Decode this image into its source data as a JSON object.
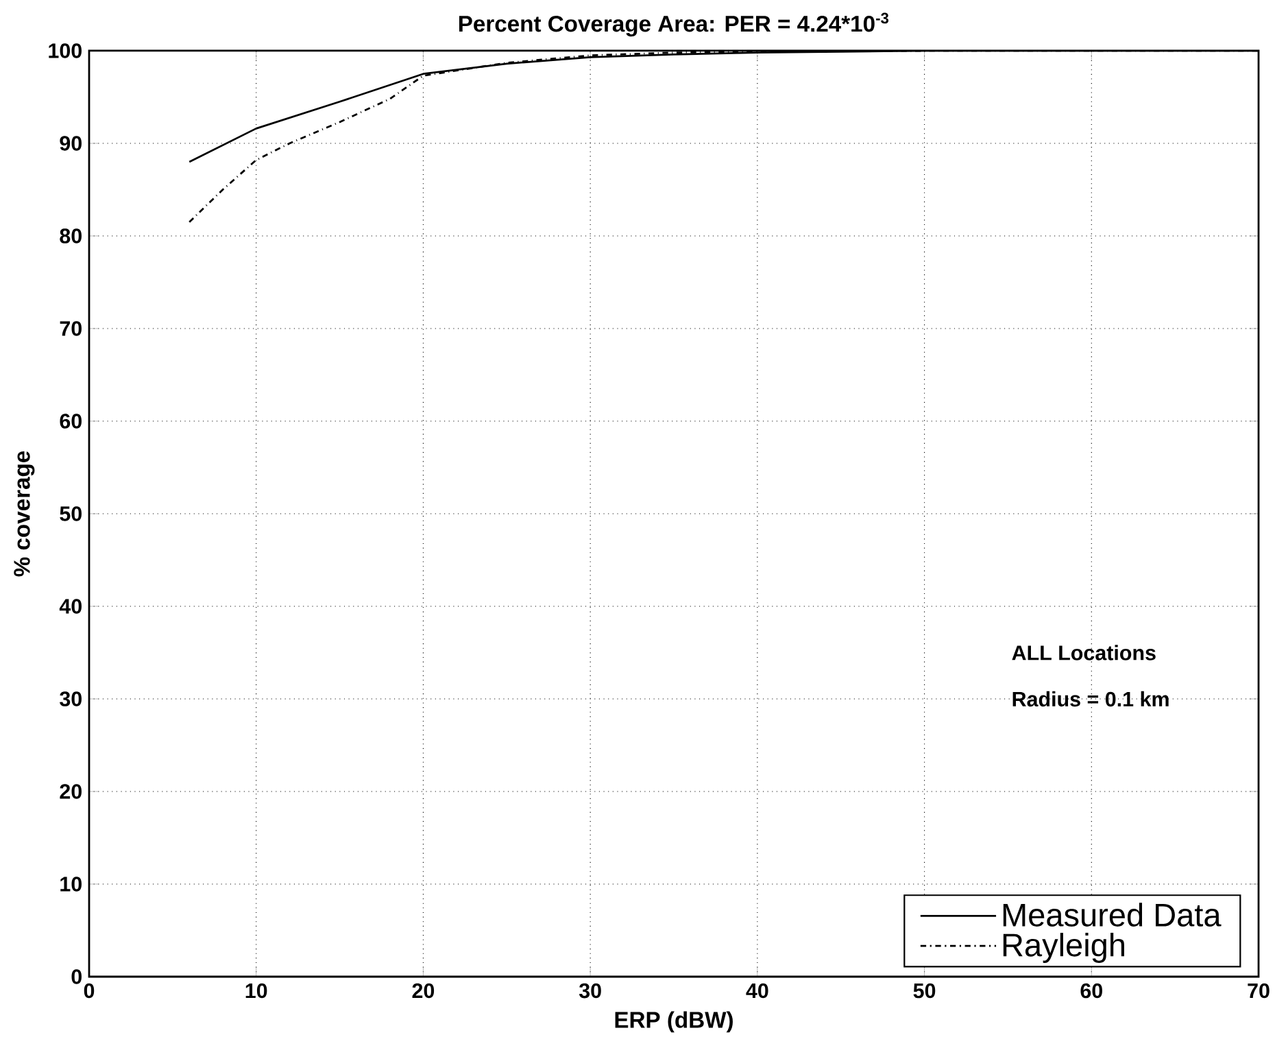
{
  "chart_data": {
    "type": "line",
    "title": "Percent Coverage Area: PER = 4.24*10$^{-3}$",
    "xlabel": "ERP (dBW)",
    "ylabel": "% coverage",
    "annotations": [
      "ALL Locations",
      "Radius = 0.1 km"
    ],
    "series": [
      {
        "name": "Measured Data",
        "color": "#000000",
        "line_style": "solid",
        "x": [
          6,
          10,
          15,
          20,
          25,
          30,
          35,
          40,
          45,
          50,
          70
        ],
        "values": [
          88,
          91.6,
          94.5,
          97.5,
          98.6,
          99.3,
          99.6,
          99.8,
          99.9,
          100,
          100
        ]
      },
      {
        "name": "Rayleigh",
        "color": "#000000",
        "line_style": "dashdot",
        "x": [
          6,
          8,
          10,
          12,
          15,
          18,
          20,
          25,
          30,
          35,
          40,
          50,
          70
        ],
        "values": [
          81.5,
          85,
          88.2,
          90,
          92.3,
          94.8,
          97.3,
          98.7,
          99.5,
          99.8,
          99.9,
          100,
          100
        ]
      }
    ],
    "xlim": [
      0,
      70
    ],
    "ylim": [
      0,
      100
    ],
    "xticks": [
      0,
      10,
      20,
      30,
      40,
      50,
      60,
      70
    ],
    "yticks": [
      0,
      10,
      20,
      30,
      40,
      50,
      60,
      70,
      80,
      90,
      100
    ],
    "grid": true,
    "legend": "bottom right",
    "marker": "none"
  }
}
